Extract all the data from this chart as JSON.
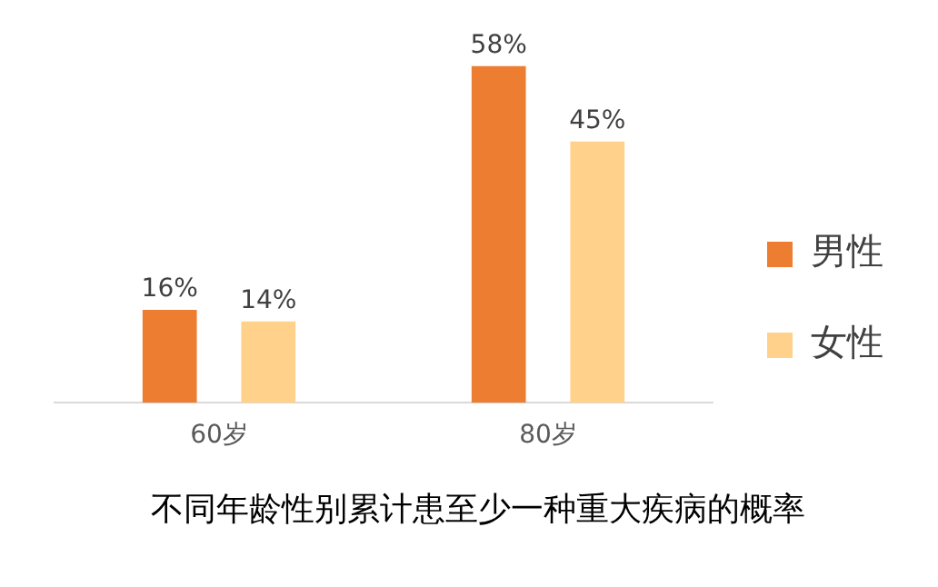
{
  "chart_data": {
    "type": "bar",
    "title": "不同年龄性别累计患至少一种重大疾病的概率",
    "categories": [
      "60岁",
      "80岁"
    ],
    "series": [
      {
        "name": "男性",
        "color": "#ed7d31",
        "values": [
          16,
          58
        ],
        "value_labels": [
          "16%",
          "58%"
        ]
      },
      {
        "name": "女性",
        "color": "#ffd18a",
        "values": [
          14,
          45
        ],
        "value_labels": [
          "14%",
          "45%"
        ]
      }
    ],
    "legend": "right",
    "grid": false
  }
}
